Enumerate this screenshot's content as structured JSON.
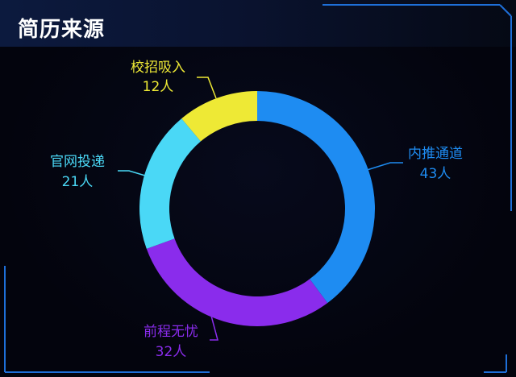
{
  "panel": {
    "title": "简历来源"
  },
  "chart_data": {
    "type": "pie",
    "title": "",
    "unit": "人",
    "slices": [
      {
        "name": "内推通道",
        "value": 43,
        "color": "#1e8cf2"
      },
      {
        "name": "前程无忧",
        "value": 32,
        "color": "#8a2cec"
      },
      {
        "name": "官网投递",
        "value": 21,
        "color": "#4ad8f6"
      },
      {
        "name": "校招吸入",
        "value": 12,
        "color": "#eee935"
      }
    ],
    "value_labels": [
      "43人",
      "32人",
      "21人",
      "12人"
    ]
  }
}
